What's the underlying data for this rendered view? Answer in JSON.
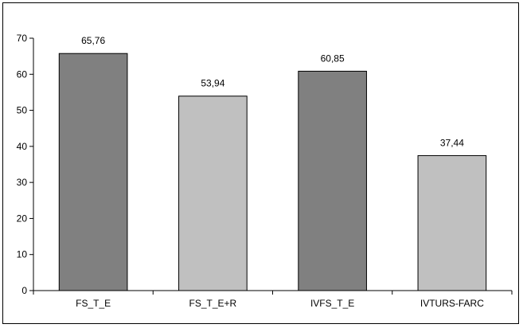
{
  "chart_data": {
    "type": "bar",
    "title": "",
    "xlabel": "",
    "ylabel": "",
    "categories": [
      "FS_T_E",
      "FS_T_E+R",
      "IVFS_T_E",
      "IVTURS-FARC"
    ],
    "values": [
      65.76,
      53.94,
      60.85,
      37.44
    ],
    "value_labels": [
      "65,76",
      "53,94",
      "60,85",
      "37,44"
    ],
    "yticks": [
      "0",
      "10",
      "20",
      "30",
      "40",
      "50",
      "60",
      "70"
    ],
    "ylim": [
      0,
      70
    ],
    "grid": false,
    "legend": "none",
    "bar_colors": [
      "#808080",
      "#c0c0c0",
      "#808080",
      "#c0c0c0"
    ],
    "bar_stroke": "#000000"
  }
}
